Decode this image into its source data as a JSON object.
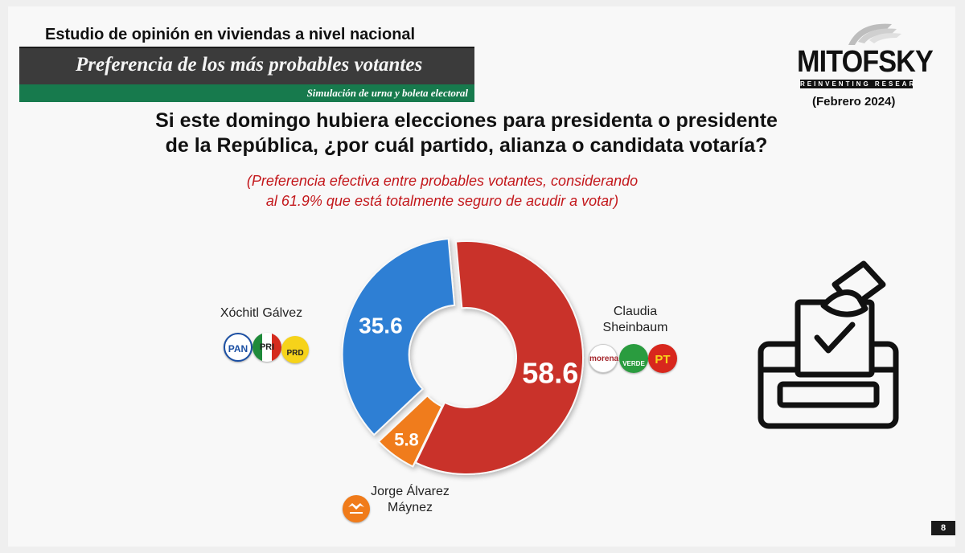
{
  "header": {
    "study_title": "Estudio de opinión en viviendas a nivel nacional",
    "banner_title": "Preferencia de los más probables votantes",
    "banner_subtitle": "Simulación de urna y boleta electoral"
  },
  "logo": {
    "name": "MITOFSKY",
    "tagline": "REINVENTING RESEARCH",
    "date": "(Febrero 2024)"
  },
  "question": {
    "line1": "Si este domingo hubiera elecciones para presidenta o presidente",
    "line2": "de la República, ¿por cuál partido, alianza o candidata votaría?"
  },
  "note": {
    "line1": "(Preferencia efectiva entre probables votantes,  considerando",
    "line2": "al 61.9% que está totalmente seguro de acudir a votar)"
  },
  "chart_data": {
    "type": "pie",
    "donut": true,
    "categories": [
      "Claudia Sheinbaum",
      "Jorge Álvarez Máynez",
      "Xóchitl Gálvez"
    ],
    "values": [
      58.6,
      5.8,
      35.6
    ],
    "value_labels": [
      "58.6",
      "5.8",
      "35.6"
    ],
    "colors": [
      "#c9302a",
      "#f07b1a",
      "#2f7fd4"
    ]
  },
  "candidates": {
    "xochitl": {
      "name": "Xóchitl Gálvez",
      "parties": [
        "PAN",
        "PRI",
        "PRD"
      ]
    },
    "claudia": {
      "name_line1": "Claudia",
      "name_line2": "Sheinbaum",
      "parties": [
        "morena",
        "VERDE",
        "PT"
      ]
    },
    "jorge": {
      "name_line1": "Jorge Álvarez",
      "name_line2": "Máynez"
    }
  },
  "page_number": "8",
  "icons": [
    "ballot-box-icon",
    "movimiento-ciudadano-icon"
  ]
}
